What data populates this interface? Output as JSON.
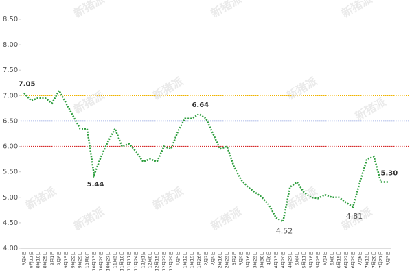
{
  "chart_data": {
    "type": "line",
    "watermark": "新猪派",
    "categories": [
      "8月4日",
      "8月11日",
      "8月18日",
      "8月25日",
      "9月1日",
      "9月8日",
      "9月15日",
      "9月22日",
      "9月29日",
      "10月6日",
      "10月13日",
      "10月20日",
      "10月27日",
      "11月3日",
      "11月10日",
      "11月17日",
      "11月24日",
      "12月1日",
      "12月8日",
      "12月15日",
      "12月22日",
      "12月29日",
      "1月5日",
      "1月12日",
      "1月19日",
      "1月26日",
      "2月2日",
      "2月9日",
      "2月16日",
      "2月23日",
      "3月2日",
      "3月9日",
      "3月16日",
      "3月23日",
      "3月30日",
      "4月6日",
      "4月13日",
      "4月20日",
      "4月27日",
      "5月4日",
      "5月11日",
      "5月18日",
      "5月25日",
      "6月1日",
      "6月8日",
      "6月15日",
      "6月22日",
      "6月29日",
      "7月6日",
      "7月13日",
      "7月20日",
      "7月27日",
      "8月3日"
    ],
    "series": [
      {
        "color": "#2e9e3e",
        "values": [
          7.05,
          6.9,
          6.95,
          6.95,
          6.85,
          7.1,
          6.85,
          6.6,
          6.35,
          6.35,
          5.44,
          5.8,
          6.1,
          6.35,
          6.0,
          6.05,
          5.9,
          5.7,
          5.75,
          5.7,
          6.0,
          5.95,
          6.3,
          6.55,
          6.55,
          6.64,
          6.55,
          6.25,
          5.95,
          6.0,
          5.6,
          5.35,
          5.2,
          5.1,
          5.0,
          4.85,
          4.6,
          4.52,
          5.2,
          5.3,
          5.1,
          5.0,
          4.98,
          5.05,
          5.0,
          5.0,
          4.9,
          4.81,
          5.3,
          5.75,
          5.8,
          5.3,
          5.3
        ],
        "value_labels": [
          "7.05",
          null,
          null,
          null,
          null,
          null,
          null,
          null,
          null,
          null,
          "5.44",
          null,
          null,
          null,
          null,
          null,
          null,
          null,
          null,
          null,
          null,
          null,
          null,
          null,
          null,
          "6.64",
          null,
          null,
          null,
          null,
          null,
          null,
          null,
          null,
          null,
          null,
          null,
          "4.52",
          null,
          null,
          null,
          null,
          null,
          null,
          null,
          null,
          null,
          "4.81",
          null,
          null,
          null,
          null,
          "5.30"
        ]
      }
    ],
    "reference_lines": [
      {
        "value": 7,
        "color": "#f0b400"
      },
      {
        "value": 6.5,
        "color": "#2a4fc4"
      },
      {
        "value": 6,
        "color": "#d62a2a"
      }
    ],
    "ylim": [
      4,
      8.5
    ],
    "yticks": [
      {
        "value": 4,
        "label": "4.00"
      },
      {
        "value": 4.5,
        "label": "4.50"
      },
      {
        "value": 5,
        "label": "5.00"
      },
      {
        "value": 5.5,
        "label": "5.50"
      },
      {
        "value": 6,
        "label": "6.00"
      },
      {
        "value": 6.5,
        "label": "6.50"
      },
      {
        "value": 7,
        "label": "7.00"
      },
      {
        "value": 7.5,
        "label": "7.50"
      },
      {
        "value": 8,
        "label": "8.00"
      },
      {
        "value": 8.5,
        "label": "8.50"
      }
    ]
  }
}
